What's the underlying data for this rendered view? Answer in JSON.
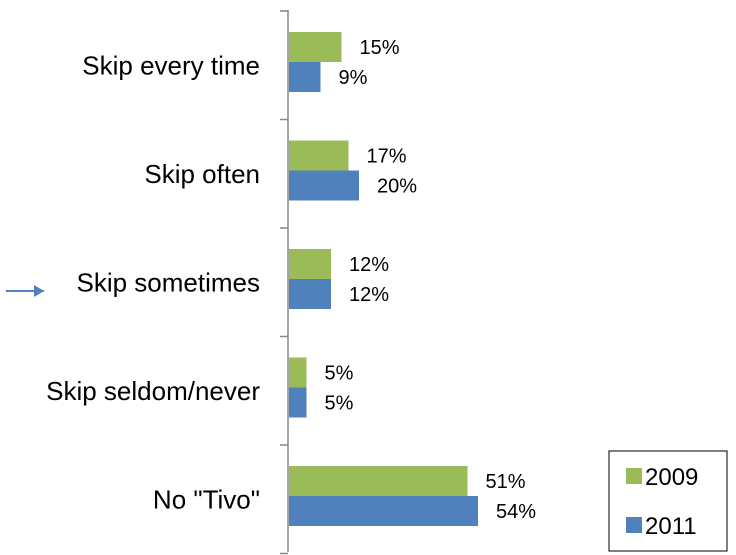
{
  "chart_data": {
    "type": "bar",
    "orientation": "horizontal",
    "categories": [
      "Skip every time",
      "Skip often",
      "Skip sometimes",
      "Skip seldom/never",
      "No \"Tivo\""
    ],
    "series": [
      {
        "name": "2009",
        "values": [
          15,
          17,
          12,
          5,
          51
        ],
        "labels": [
          "15%",
          "17%",
          "12%",
          "5%",
          "51%"
        ],
        "color": "#9BBB59"
      },
      {
        "name": "2011",
        "values": [
          9,
          20,
          12,
          5,
          54
        ],
        "labels": [
          "9%",
          "20%",
          "12%",
          "5%",
          "54%"
        ],
        "color": "#4F81BD"
      }
    ],
    "value_unit": "%",
    "title": "",
    "xlabel": "",
    "ylabel": "",
    "xlim": [
      0,
      60
    ],
    "grid": false,
    "legend": {
      "placement": "bottom-right",
      "entries": [
        "2009",
        "2011"
      ]
    }
  },
  "colors": {
    "axis": "#868686",
    "legend_border": "#000000",
    "arrow": "#4F81BD"
  }
}
